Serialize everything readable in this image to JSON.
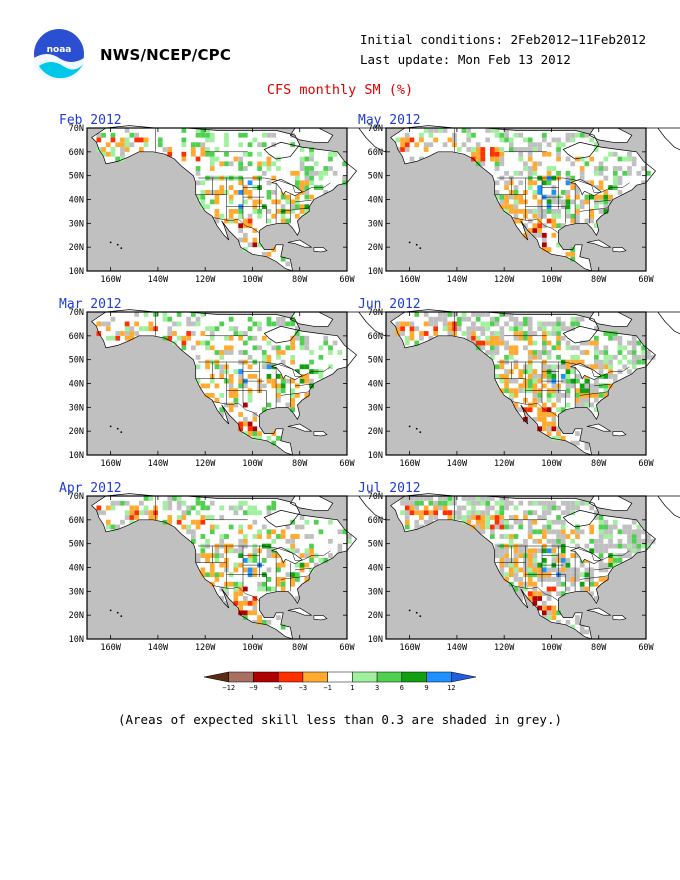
{
  "header": {
    "org": "NWS/NCEP/CPC",
    "initial_conditions": "Initial conditions: 2Feb2012−11Feb2012",
    "last_update": "Last update: Mon Feb 13 2012",
    "title": "CFS monthly SM (%)",
    "logo_icon": "noaa-logo-icon"
  },
  "panels": [
    {
      "title": "Feb 2012"
    },
    {
      "title": "Mar 2012"
    },
    {
      "title": "Apr 2012"
    },
    {
      "title": "May 2012"
    },
    {
      "title": "Jun 2012"
    },
    {
      "title": "Jul 2012"
    }
  ],
  "axes": {
    "lat_labels": [
      "70N",
      "60N",
      "50N",
      "40N",
      "30N",
      "20N",
      "10N"
    ],
    "lon_labels": [
      "160W",
      "140W",
      "120W",
      "100W",
      "80W",
      "60W"
    ],
    "lat_range": [
      10,
      70
    ],
    "lon_range": [
      -170,
      -60
    ]
  },
  "colorbar": {
    "ticks": [
      "−12",
      "−9",
      "−6",
      "−3",
      "−1",
      "1",
      "3",
      "6",
      "9",
      "12"
    ],
    "colors": [
      "#5a2a14",
      "#a87060",
      "#b00000",
      "#ff3000",
      "#ffaa30",
      "#ffffff",
      "#a0f0a0",
      "#50d050",
      "#10a010",
      "#1e90ff",
      "#2060e0"
    ]
  },
  "note": "(Areas of expected skill less than 0.3 are shaded in grey.)",
  "colors": {
    "land_grey": "#c0c0c0",
    "title_red": "#e00000",
    "panel_title_blue": "#1f3bd6"
  }
}
